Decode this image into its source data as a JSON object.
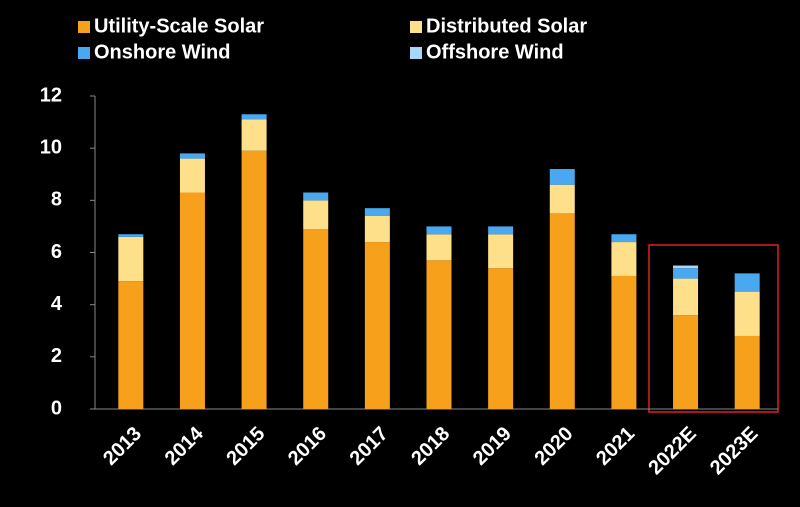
{
  "chart_data": {
    "type": "stacked_bar",
    "categories": [
      "2013",
      "2014",
      "2015",
      "2016",
      "2017",
      "2018",
      "2019",
      "2020",
      "2021",
      "2022E",
      "2023E"
    ],
    "series": [
      {
        "name": "Utility-Scale Solar",
        "color": "#f7a01c",
        "values": [
          4.9,
          8.3,
          9.9,
          6.9,
          6.4,
          5.7,
          5.4,
          7.5,
          5.1,
          3.6,
          2.8
        ]
      },
      {
        "name": "Distributed Solar",
        "color": "#ffe08a",
        "values": [
          1.7,
          1.3,
          1.2,
          1.1,
          1.0,
          1.0,
          1.3,
          1.1,
          1.3,
          1.4,
          1.7
        ]
      },
      {
        "name": "Onshore Wind",
        "color": "#4aa8f0",
        "values": [
          0.1,
          0.2,
          0.2,
          0.3,
          0.3,
          0.3,
          0.3,
          0.6,
          0.3,
          0.4,
          0.7
        ]
      },
      {
        "name": "Offshore Wind",
        "color": "#a8d8f8",
        "values": [
          0,
          0,
          0,
          0,
          0,
          0,
          0,
          0,
          0,
          0.1,
          0
        ]
      }
    ],
    "ylim": [
      0,
      12
    ],
    "yticks": [
      0,
      2,
      4,
      6,
      8,
      10,
      12
    ],
    "legend": "top"
  }
}
